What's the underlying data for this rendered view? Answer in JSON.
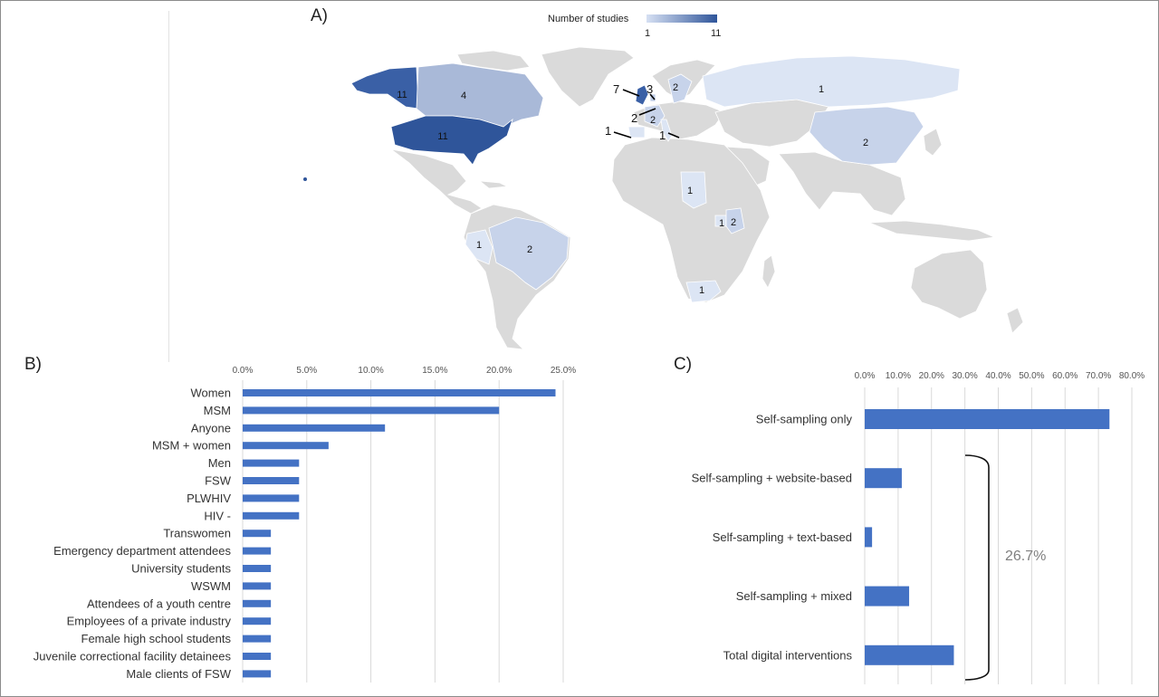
{
  "panels": {
    "a": "A)",
    "b": "B)",
    "c": "C)"
  },
  "legend": {
    "title": "Number of studies",
    "min": "1",
    "max": "11",
    "color_min": "#d6e0f3",
    "color_max": "#2f559a"
  },
  "map": {
    "region_counts": [
      {
        "region": "Alaska",
        "value": "11"
      },
      {
        "region": "Canada",
        "value": "4"
      },
      {
        "region": "United States",
        "value": "11"
      },
      {
        "region": "United Kingdom",
        "value": "7"
      },
      {
        "region": "Netherlands",
        "value": "3"
      },
      {
        "region": "Sweden",
        "value": "2"
      },
      {
        "region": "Belgium",
        "value": "2"
      },
      {
        "region": "France",
        "value": "2"
      },
      {
        "region": "Spain",
        "value": "1"
      },
      {
        "region": "Italy",
        "value": "1"
      },
      {
        "region": "Russia",
        "value": "1"
      },
      {
        "region": "China",
        "value": "2"
      },
      {
        "region": "Sudan",
        "value": "1"
      },
      {
        "region": "Uganda",
        "value": "1"
      },
      {
        "region": "Kenya",
        "value": "2"
      },
      {
        "region": "Peru",
        "value": "1"
      },
      {
        "region": "Brazil",
        "value": "2"
      },
      {
        "region": "South Africa",
        "value": "1"
      }
    ],
    "callouts": {
      "uk": "7",
      "nl": "3",
      "be": "2",
      "es": "1",
      "it": "1"
    },
    "colors": {
      "no_data": "#dadada",
      "land_border": "#ffffff"
    }
  },
  "chart_data": [
    {
      "type": "bar",
      "orientation": "horizontal",
      "categories": [
        "Women",
        "MSM",
        "Anyone",
        "MSM + women",
        "Men",
        "FSW",
        "PLWHIV",
        "HIV -",
        "Transwomen",
        "Emergency department attendees",
        "University students",
        "WSWM",
        "Attendees of a youth centre",
        "Employees of a private industry",
        "Female high school students",
        "Juvenile correctional facility detainees",
        "Male clients of FSW"
      ],
      "values": [
        24.4,
        20.0,
        11.1,
        6.7,
        4.4,
        4.4,
        4.4,
        4.4,
        2.2,
        2.2,
        2.2,
        2.2,
        2.2,
        2.2,
        2.2,
        2.2,
        2.2
      ],
      "ticks": [
        "0.0%",
        "5.0%",
        "10.0%",
        "15.0%",
        "20.0%",
        "25.0%"
      ],
      "xlim": [
        0,
        25
      ],
      "grid": true,
      "bar_color": "#4472c4"
    },
    {
      "type": "bar",
      "orientation": "horizontal",
      "categories": [
        "Self-sampling only",
        "Self-sampling + website-based",
        "Self-sampling + text-based",
        "Self-sampling + mixed",
        "Total digital interventions"
      ],
      "values": [
        73.3,
        11.1,
        2.2,
        13.3,
        26.7
      ],
      "ticks": [
        "0.0%",
        "10.0%",
        "20.0%",
        "30.0%",
        "40.0%",
        "50.0%",
        "60.0%",
        "70.0%",
        "80.0%"
      ],
      "xlim": [
        0,
        80
      ],
      "grid": true,
      "bar_color": "#4472c4",
      "annotation": "26.7%"
    }
  ]
}
